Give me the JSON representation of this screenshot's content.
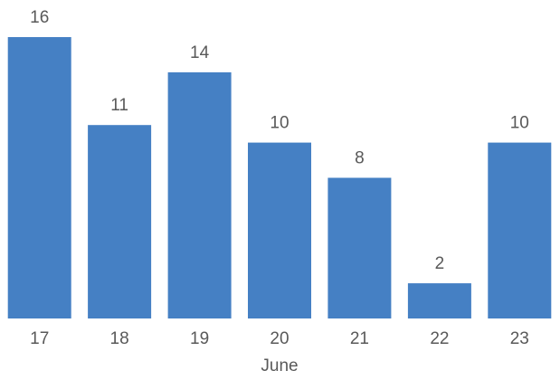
{
  "chart_data": {
    "type": "bar",
    "categories": [
      "17",
      "18",
      "19",
      "20",
      "21",
      "22",
      "23"
    ],
    "values": [
      16,
      11,
      14,
      10,
      8,
      2,
      10
    ],
    "data_labels": [
      "16",
      "11",
      "14",
      "10",
      "8",
      "2",
      "10"
    ],
    "title": "",
    "xlabel": "June",
    "ylabel": "",
    "ylim": [
      0,
      16
    ],
    "grid": false,
    "legend": "none",
    "bar_color": "#4580C4",
    "text_color": "#595959"
  }
}
